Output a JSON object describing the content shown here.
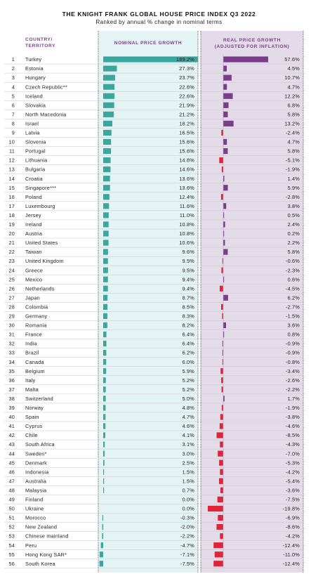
{
  "chart_data": {
    "type": "bar",
    "title": "THE KNIGHT FRANK GLOBAL HOUSE PRICE INDEX Q3 2022",
    "subtitle": "Ranked by annual % change in nominal terms",
    "column_headers": {
      "country_line1": "COUNTRY/",
      "country_line2": "TERRITORY",
      "nominal": "NOMINAL PRICE GROWTH",
      "real_line1": "REAL PRICE GROWTH",
      "real_line2": "(ADJUSTED FOR INFLATION)"
    },
    "rows": [
      {
        "rank": "1",
        "country": "Turkey",
        "nominal": 189.2,
        "nominal_label": "189.2%",
        "real": 57.6,
        "real_label": "57.6%"
      },
      {
        "rank": "2",
        "country": "Estonia",
        "nominal": 27.3,
        "nominal_label": "27.3%",
        "real": 4.5,
        "real_label": "4.5%"
      },
      {
        "rank": "3",
        "country": "Hungary",
        "nominal": 23.7,
        "nominal_label": "23.7%",
        "real": 10.7,
        "real_label": "10.7%"
      },
      {
        "rank": "4",
        "country": "Czech Republic**",
        "nominal": 22.6,
        "nominal_label": "22.6%",
        "real": 4.7,
        "real_label": "4.7%"
      },
      {
        "rank": "5",
        "country": "Iceland",
        "nominal": 22.6,
        "nominal_label": "22.6%",
        "real": 12.2,
        "real_label": "12.2%"
      },
      {
        "rank": "6",
        "country": "Slovakia",
        "nominal": 21.9,
        "nominal_label": "21.9%",
        "real": 6.8,
        "real_label": "6.8%"
      },
      {
        "rank": "7",
        "country": "North Macedonia",
        "nominal": 21.2,
        "nominal_label": "21.2%",
        "real": 5.8,
        "real_label": "5.8%"
      },
      {
        "rank": "8",
        "country": "Israel",
        "nominal": 18.2,
        "nominal_label": "18.2%",
        "real": 13.2,
        "real_label": "13.2%"
      },
      {
        "rank": "9",
        "country": "Latvia",
        "nominal": 16.5,
        "nominal_label": "16.5%",
        "real": -2.4,
        "real_label": "-2.4%"
      },
      {
        "rank": "10",
        "country": "Slovenia",
        "nominal": 15.6,
        "nominal_label": "15.6%",
        "real": 4.7,
        "real_label": "4.7%"
      },
      {
        "rank": "11",
        "country": "Portugal",
        "nominal": 15.6,
        "nominal_label": "15.6%",
        "real": 5.8,
        "real_label": "5.8%"
      },
      {
        "rank": "12",
        "country": "Lithuania",
        "nominal": 14.8,
        "nominal_label": "14.8%",
        "real": -5.1,
        "real_label": "-5.1%"
      },
      {
        "rank": "13",
        "country": "Bulgaria",
        "nominal": 14.6,
        "nominal_label": "14.6%",
        "real": -1.9,
        "real_label": "-1.9%"
      },
      {
        "rank": "14",
        "country": "Croatia",
        "nominal": 13.6,
        "nominal_label": "13.6%",
        "real": 1.4,
        "real_label": "1.4%"
      },
      {
        "rank": "15",
        "country": "Singapore***",
        "nominal": 13.6,
        "nominal_label": "13.6%",
        "real": 5.9,
        "real_label": "5.9%"
      },
      {
        "rank": "16",
        "country": "Poland",
        "nominal": 12.4,
        "nominal_label": "12.4%",
        "real": -2.8,
        "real_label": "-2.8%"
      },
      {
        "rank": "17",
        "country": "Luxembourg",
        "nominal": 11.6,
        "nominal_label": "11.6%",
        "real": 3.8,
        "real_label": "3.8%"
      },
      {
        "rank": "18",
        "country": "Jersey",
        "nominal": 11.0,
        "nominal_label": "11.0%",
        "real": 0.5,
        "real_label": "0.5%"
      },
      {
        "rank": "19",
        "country": "Ireland",
        "nominal": 10.8,
        "nominal_label": "10.8%",
        "real": 2.4,
        "real_label": "2.4%"
      },
      {
        "rank": "20",
        "country": "Austria",
        "nominal": 10.8,
        "nominal_label": "10.8%",
        "real": 0.2,
        "real_label": "0.2%"
      },
      {
        "rank": "21",
        "country": "United States",
        "nominal": 10.6,
        "nominal_label": "10.6%",
        "real": 2.2,
        "real_label": "2.2%"
      },
      {
        "rank": "22",
        "country": "Taiwan",
        "nominal": 9.6,
        "nominal_label": "9.6%",
        "real": 5.8,
        "real_label": "5.8%"
      },
      {
        "rank": "23",
        "country": "United Kingdom",
        "nominal": 9.5,
        "nominal_label": "9.5%",
        "real": -0.6,
        "real_label": "-0.6%"
      },
      {
        "rank": "24",
        "country": "Greece",
        "nominal": 9.5,
        "nominal_label": "9.5%",
        "real": -2.3,
        "real_label": "-2.3%"
      },
      {
        "rank": "25",
        "country": "Mexico",
        "nominal": 9.4,
        "nominal_label": "9.4%",
        "real": 0.6,
        "real_label": "0.6%"
      },
      {
        "rank": "26",
        "country": "Netherlands",
        "nominal": 9.4,
        "nominal_label": "9.4%",
        "real": -4.5,
        "real_label": "-4.5%"
      },
      {
        "rank": "27",
        "country": "Japan",
        "nominal": 8.7,
        "nominal_label": "8.7%",
        "real": 6.2,
        "real_label": "6.2%"
      },
      {
        "rank": "28",
        "country": "Colombia",
        "nominal": 8.5,
        "nominal_label": "8.5%",
        "real": -2.7,
        "real_label": "-2.7%"
      },
      {
        "rank": "29",
        "country": "Germany",
        "nominal": 8.3,
        "nominal_label": "8.3%",
        "real": -1.5,
        "real_label": "-1.5%"
      },
      {
        "rank": "30",
        "country": "Romania",
        "nominal": 8.2,
        "nominal_label": "8.2%",
        "real": 3.6,
        "real_label": "3.6%"
      },
      {
        "rank": "31",
        "country": "France",
        "nominal": 6.4,
        "nominal_label": "6.4%",
        "real": 0.8,
        "real_label": "0.8%"
      },
      {
        "rank": "32",
        "country": "India",
        "nominal": 6.4,
        "nominal_label": "6.4%",
        "real": -0.9,
        "real_label": "-0.9%"
      },
      {
        "rank": "33",
        "country": "Brazil",
        "nominal": 6.2,
        "nominal_label": "6.2%",
        "real": -0.9,
        "real_label": "-0.9%"
      },
      {
        "rank": "34",
        "country": "Canada",
        "nominal": 6.0,
        "nominal_label": "6.0%",
        "real": -0.8,
        "real_label": "-0.8%"
      },
      {
        "rank": "35",
        "country": "Belgium",
        "nominal": 5.9,
        "nominal_label": "5.9%",
        "real": -3.4,
        "real_label": "-3.4%"
      },
      {
        "rank": "36",
        "country": "Italy",
        "nominal": 5.2,
        "nominal_label": "5.2%",
        "real": -2.6,
        "real_label": "-2.6%"
      },
      {
        "rank": "37",
        "country": "Malta",
        "nominal": 5.2,
        "nominal_label": "5.2%",
        "real": -2.2,
        "real_label": "-2.2%"
      },
      {
        "rank": "38",
        "country": "Switzerland",
        "nominal": 5.0,
        "nominal_label": "5.0%",
        "real": 1.7,
        "real_label": "1.7%"
      },
      {
        "rank": "39",
        "country": "Norway",
        "nominal": 4.8,
        "nominal_label": "4.8%",
        "real": -1.9,
        "real_label": "-1.9%"
      },
      {
        "rank": "40",
        "country": "Spain",
        "nominal": 4.7,
        "nominal_label": "4.7%",
        "real": -3.8,
        "real_label": "-3.8%"
      },
      {
        "rank": "41",
        "country": "Cyprus",
        "nominal": 4.6,
        "nominal_label": "4.6%",
        "real": -4.6,
        "real_label": "-4.6%"
      },
      {
        "rank": "42",
        "country": "Chile",
        "nominal": 4.1,
        "nominal_label": "4.1%",
        "real": -8.5,
        "real_label": "-8.5%"
      },
      {
        "rank": "43",
        "country": "South Africa",
        "nominal": 3.1,
        "nominal_label": "3.1%",
        "real": -4.3,
        "real_label": "-4.3%"
      },
      {
        "rank": "44",
        "country": "Sweden*",
        "nominal": 3.0,
        "nominal_label": "3.0%",
        "real": -7.0,
        "real_label": "-7.0%"
      },
      {
        "rank": "45",
        "country": "Denmark",
        "nominal": 2.5,
        "nominal_label": "2.5%",
        "real": -5.3,
        "real_label": "-5.3%"
      },
      {
        "rank": "46",
        "country": "Indonesia",
        "nominal": 1.5,
        "nominal_label": "1.5%",
        "real": -4.2,
        "real_label": "-4.2%"
      },
      {
        "rank": "47",
        "country": "Australia",
        "nominal": 1.5,
        "nominal_label": "1.5%",
        "real": -5.4,
        "real_label": "-5.4%"
      },
      {
        "rank": "48",
        "country": "Malaysia",
        "nominal": 0.7,
        "nominal_label": "0.7%",
        "real": -3.6,
        "real_label": "-3.6%"
      },
      {
        "rank": "49",
        "country": "Finland",
        "nominal": 0.0,
        "nominal_label": "0.0%",
        "real": -7.5,
        "real_label": "-7.5%"
      },
      {
        "rank": "50",
        "country": "Ukraine",
        "nominal": 0.0,
        "nominal_label": "0.0%",
        "real": -19.8,
        "real_label": "-19.8%"
      },
      {
        "rank": "51",
        "country": "Morocco",
        "nominal": -0.3,
        "nominal_label": "-0.3%",
        "real": -6.9,
        "real_label": "-6.9%"
      },
      {
        "rank": "52",
        "country": "New Zealand",
        "nominal": -2.0,
        "nominal_label": "-2.0%",
        "real": -8.6,
        "real_label": "-8.6%"
      },
      {
        "rank": "53",
        "country": "Chinese mainland",
        "nominal": -2.2,
        "nominal_label": "-2.2%",
        "real": -4.2,
        "real_label": "-4.2%"
      },
      {
        "rank": "54",
        "country": "Peru",
        "nominal": -4.7,
        "nominal_label": "-4.7%",
        "real": -12.4,
        "real_label": "-12.4%"
      },
      {
        "rank": "55",
        "country": "Hong Kong SAR*",
        "nominal": -7.1,
        "nominal_label": "-7.1%",
        "real": -11.0,
        "real_label": "-11.0%"
      },
      {
        "rank": "56",
        "country": "South Korea",
        "nominal": -7.5,
        "nominal_label": "-7.5%",
        "real": -12.4,
        "real_label": "-12.4%"
      }
    ],
    "colors": {
      "nominal_bar": "#3aa6a0",
      "nominal_panel": "#e4f3f3",
      "real_positive": "#7a3d8a",
      "real_negative": "#e0243a",
      "real_panel": "#e3dbe8",
      "header_text": "#7a3d8a",
      "row_divider": "#c8c8c8"
    }
  }
}
